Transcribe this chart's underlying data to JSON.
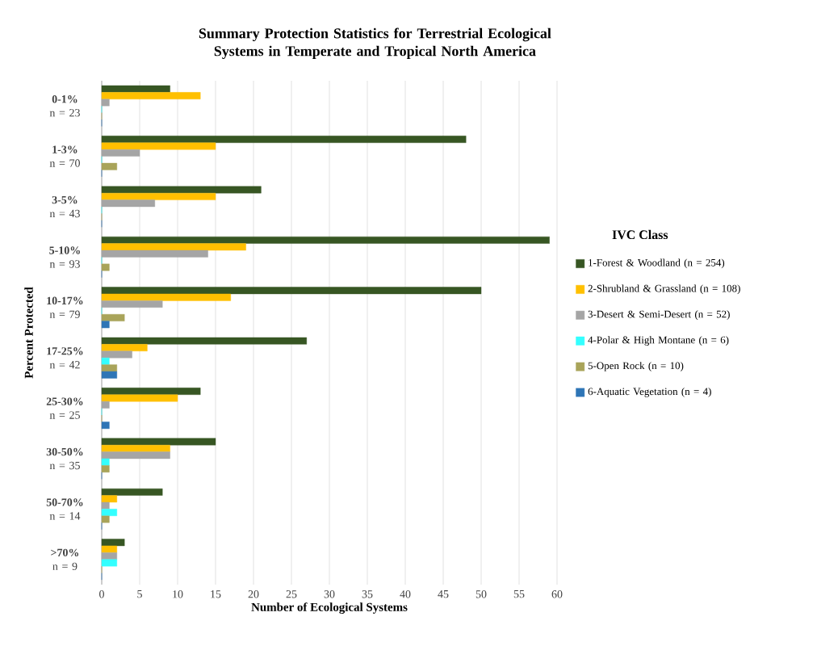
{
  "chart_data": {
    "type": "bar",
    "orientation": "horizontal",
    "title": "Summary Protection Statistics for Terrestrial Ecological Systems in Temperate and Tropical North America",
    "xlabel": "Number of Ecological Systems",
    "ylabel": "Percent Protected",
    "legend_title": "IVC Class",
    "categories": [
      "**0-1%** n = 23",
      "**1-3%** n = 70",
      "**3-5%** n = 43",
      "**5-10%** n = 93",
      "**10-17%** n = 79",
      "**17-25%** n = 42",
      "**25-30%** n = 25",
      "**30-50%** n = 35",
      "**50-70%** n = 14",
      "**>70%** n = 9"
    ],
    "series": [
      {
        "name": "1-Forest & Woodland (n = 254)",
        "color": "#375623",
        "values": [
          9,
          48,
          21,
          59,
          50,
          27,
          13,
          15,
          8,
          3
        ]
      },
      {
        "name": "2-Shrubland & Grassland (n = 108)",
        "color": "#ffc000",
        "values": [
          13,
          15,
          15,
          19,
          17,
          6,
          10,
          9,
          2,
          2
        ]
      },
      {
        "name": "3-Desert & Semi-Desert (n = 52)",
        "color": "#a5a5a5",
        "values": [
          1,
          5,
          7,
          14,
          8,
          4,
          1,
          9,
          1,
          2
        ]
      },
      {
        "name": "4-Polar & High Montane (n = 6)",
        "color": "#33ffff",
        "values": [
          0,
          0,
          0,
          0,
          0,
          1,
          0,
          1,
          2,
          2
        ]
      },
      {
        "name": "5-Open Rock (n = 10)",
        "color": "#a9a45a",
        "values": [
          0,
          2,
          0,
          1,
          3,
          2,
          0,
          1,
          1,
          0
        ]
      },
      {
        "name": "6-Aquatic Vegetation (n = 4)",
        "color": "#2e75b6",
        "values": [
          0,
          0,
          0,
          0,
          1,
          2,
          1,
          0,
          0,
          0
        ]
      }
    ],
    "xlim": [
      0,
      60
    ],
    "xticks": [
      0,
      5,
      10,
      15,
      20,
      25,
      30,
      35,
      40,
      45,
      50,
      55,
      60
    ],
    "grid": "x",
    "legend": "right"
  }
}
